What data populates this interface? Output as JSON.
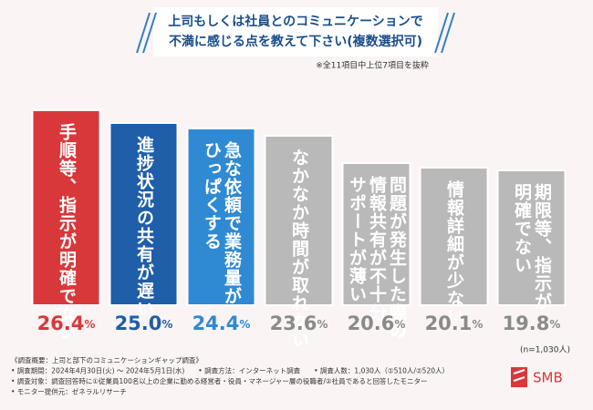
{
  "chart_data": {
    "type": "bar",
    "title": [
      "上司もしくは社員とのコミュニケーションで",
      "不満に感じる点を教えて下さい(複数選択可)"
    ],
    "subtitle": "※全11項目中上位7項目を抜粋",
    "categories": [
      [
        "手順等、指示が明確でない"
      ],
      [
        "進捗状況の共有が遅い"
      ],
      [
        "急な依頼で業務量が",
        "ひっぱくする"
      ],
      [
        "なかなか時間が取れない"
      ],
      [
        "問題が発生した際の",
        "情報共有が不十分、",
        "サポートが薄い"
      ],
      [
        "情報詳細が少ない"
      ],
      [
        "期限等、指示が",
        "明確でない"
      ]
    ],
    "values": [
      26.4,
      25.0,
      24.4,
      23.6,
      20.6,
      20.1,
      19.8
    ],
    "value_labels": [
      "26.4%",
      "25.0%",
      "24.4%",
      "23.6%",
      "20.6%",
      "20.1%",
      "19.8%"
    ],
    "colors": [
      "#d8383a",
      "#1f5ea8",
      "#2f8ad3",
      "#b9b9b9",
      "#b9b9b9",
      "#b9b9b9",
      "#b9b9b9"
    ],
    "label_colors": [
      "#d8383a",
      "#1f5ea8",
      "#2f8ad3",
      "#8a8a8a",
      "#8a8a8a",
      "#8a8a8a",
      "#8a8a8a"
    ],
    "ylim": [
      5,
      27
    ],
    "annotation": "(n=1,030人)"
  },
  "footer": [
    "《調査概要：上司と部下のコミュニケーションギャップ調査》",
    "• 調査期間：2024年4月30日(火) 〜 2024年5月1日(水)　　• 調査方法：インターネット調査　　• 調査人数：1,030人（①510人/②520人）",
    "• 調査対象：調査回答時に①従業員100名以上の企業に勤める経営者・役員・マネージャー層の役職者/②社員であると回答したモニター",
    "• モニター提供元：ゼネラルリサーチ"
  ],
  "logo": "SMB"
}
